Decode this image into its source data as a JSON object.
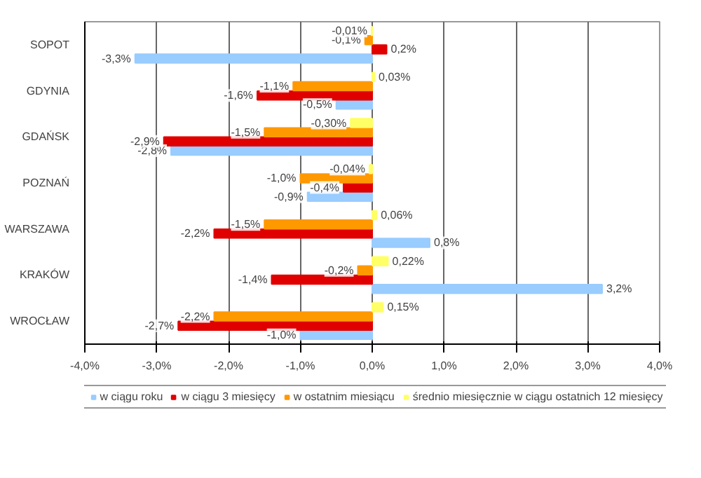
{
  "chart_data": {
    "type": "bar",
    "orientation": "horizontal",
    "categories": [
      "SOPOT",
      "GDYNIA",
      "GDAŃSK",
      "POZNAŃ",
      "WARSZAWA",
      "KRAKÓW",
      "WROCŁAW"
    ],
    "series": [
      {
        "name": "w ciągu roku",
        "color": "#99ccff",
        "values": [
          -3.3,
          -0.5,
          -2.8,
          -0.9,
          0.8,
          3.2,
          -1.0
        ],
        "value_labels": [
          "-3,3%",
          "-0,5%",
          "-2,8%",
          "-0,9%",
          "0,8%",
          "3,2%",
          "-1,0%"
        ]
      },
      {
        "name": "w ciągu 3 miesięcy",
        "color": "#e00000",
        "values": [
          0.2,
          -1.6,
          -2.9,
          -0.4,
          -2.2,
          -1.4,
          -2.7
        ],
        "value_labels": [
          "0,2%",
          "-1,6%",
          "-2,9%",
          "-0,4%",
          "-2,2%",
          "-1,4%",
          "-2,7%"
        ]
      },
      {
        "name": "w ostatnim miesiącu",
        "color": "#ff9900",
        "values": [
          -0.1,
          -1.1,
          -1.5,
          -1.0,
          -1.5,
          -0.2,
          -2.2
        ],
        "value_labels": [
          "-0,1%",
          "-1,1%",
          "-1,5%",
          "-1,0%",
          "-1,5%",
          "-0,2%",
          "-2,2%"
        ]
      },
      {
        "name": "średnio miesięcznie w ciągu ostatnich 12 miesięcy",
        "color": "#ffff66",
        "values": [
          -0.01,
          0.03,
          -0.3,
          -0.04,
          0.06,
          0.22,
          0.15
        ],
        "value_labels": [
          "-0,01%",
          "0,03%",
          "-0,30%",
          "-0,04%",
          "0,06%",
          "0,22%",
          "0,15%"
        ]
      }
    ],
    "xlim": [
      -4.0,
      4.0
    ],
    "xticks": [
      {
        "value": -4.0,
        "label": "-4,0%"
      },
      {
        "value": -3.0,
        "label": "-3,0%"
      },
      {
        "value": -2.0,
        "label": "-2,0%"
      },
      {
        "value": -1.0,
        "label": "-1,0%"
      },
      {
        "value": 0.0,
        "label": "0,0%"
      },
      {
        "value": 1.0,
        "label": "1,0%"
      },
      {
        "value": 2.0,
        "label": "2,0%"
      },
      {
        "value": 3.0,
        "label": "3,0%"
      },
      {
        "value": 4.0,
        "label": "4,0%"
      }
    ],
    "grid": "x",
    "legend": "bottom"
  }
}
